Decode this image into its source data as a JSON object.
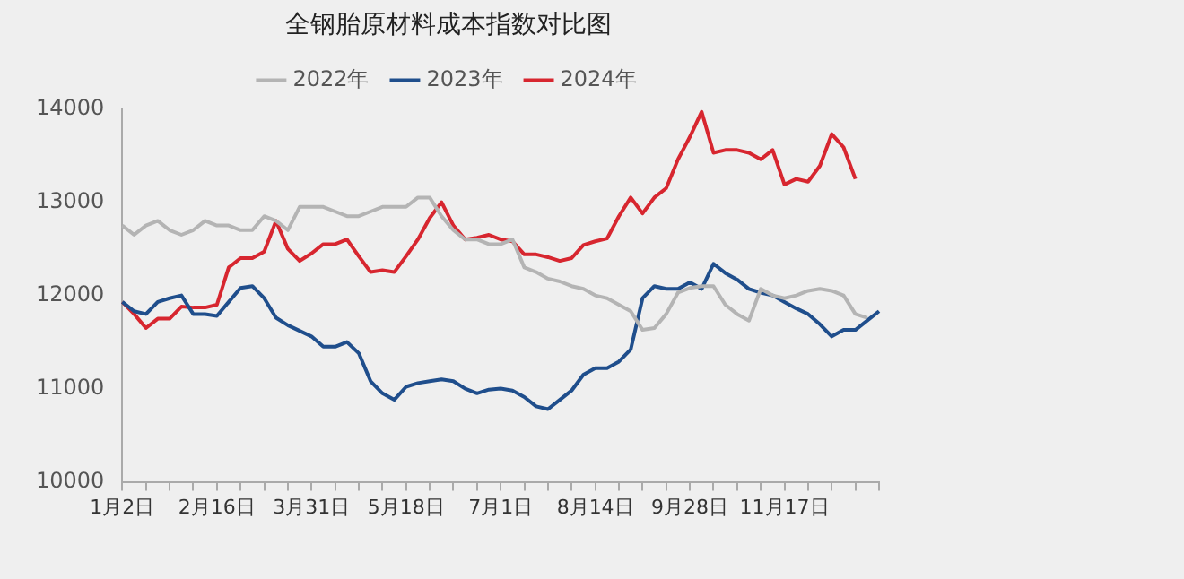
{
  "chart_data": {
    "type": "line",
    "title": "全钢胎原材料成本指数对比图",
    "categories": [
      "1月2日",
      null,
      null,
      null,
      null,
      null,
      null,
      null,
      "2月16日",
      null,
      null,
      null,
      null,
      null,
      null,
      null,
      "3月31日",
      null,
      null,
      null,
      null,
      null,
      null,
      null,
      "5月18日",
      null,
      null,
      null,
      null,
      null,
      null,
      null,
      "7月1日",
      null,
      null,
      null,
      null,
      null,
      null,
      null,
      "8月14日",
      null,
      null,
      null,
      null,
      null,
      null,
      null,
      "9月28日",
      null,
      null,
      null,
      null,
      null,
      null,
      null,
      "11月17日",
      null,
      null,
      null,
      null,
      null,
      null,
      null,
      null
    ],
    "series": [
      {
        "name": "2022年",
        "color": "#b4b4b4",
        "values": [
          12750,
          12650,
          12750,
          12800,
          12700,
          12650,
          12700,
          12800,
          12750,
          12750,
          12700,
          12700,
          12850,
          12800,
          12700,
          12950,
          12950,
          12950,
          12900,
          12850,
          12850,
          12900,
          12950,
          12950,
          12950,
          13050,
          13050,
          12850,
          12700,
          12600,
          12600,
          12550,
          12550,
          12600,
          12300,
          12250,
          12180,
          12150,
          12100,
          12070,
          12000,
          11970,
          11900,
          11830,
          11630,
          11650,
          11800,
          12030,
          12080,
          12100,
          12100,
          11900,
          11800,
          11730,
          12070,
          12000,
          11970,
          12000,
          12050,
          12070,
          12050,
          12000,
          11800,
          11760,
          null
        ]
      },
      {
        "name": "2023年",
        "color": "#1f4e8c",
        "values": [
          11930,
          11830,
          11800,
          11930,
          11970,
          12000,
          11800,
          11800,
          11780,
          11930,
          12080,
          12100,
          11970,
          11760,
          11680,
          11620,
          11560,
          11450,
          11450,
          11500,
          11380,
          11080,
          10950,
          10880,
          11020,
          11060,
          11080,
          11100,
          11080,
          11000,
          10950,
          10990,
          11000,
          10980,
          10910,
          10810,
          10780,
          10880,
          10980,
          11150,
          11220,
          11220,
          11290,
          11420,
          11970,
          12100,
          12070,
          12070,
          12140,
          12070,
          12340,
          12240,
          12170,
          12070,
          12030,
          12000,
          11930,
          11860,
          11800,
          11690,
          11560,
          11630,
          11630,
          11730,
          11830
        ]
      },
      {
        "name": "2024年",
        "color": "#d7262f",
        "values": [
          11930,
          11800,
          11650,
          11750,
          11750,
          11880,
          11870,
          11870,
          11900,
          12300,
          12400,
          12400,
          12470,
          12800,
          12500,
          12370,
          12450,
          12550,
          12550,
          12600,
          12420,
          12250,
          12270,
          12250,
          12420,
          12600,
          12830,
          13000,
          12750,
          12600,
          12620,
          12650,
          12600,
          12580,
          12440,
          12440,
          12410,
          12370,
          12400,
          12540,
          12580,
          12610,
          12850,
          13050,
          12880,
          13050,
          13150,
          13460,
          13700,
          13970,
          13530,
          13560,
          13560,
          13530,
          13460,
          13560,
          13190,
          13250,
          13220,
          13390,
          13730,
          13590,
          13250,
          null,
          null
        ]
      }
    ],
    "ylim": [
      10000,
      14000
    ],
    "yticks": [
      10000,
      11000,
      12000,
      13000,
      14000
    ],
    "grid": false,
    "legend": "top",
    "marker": "none",
    "line_style": "solid"
  }
}
